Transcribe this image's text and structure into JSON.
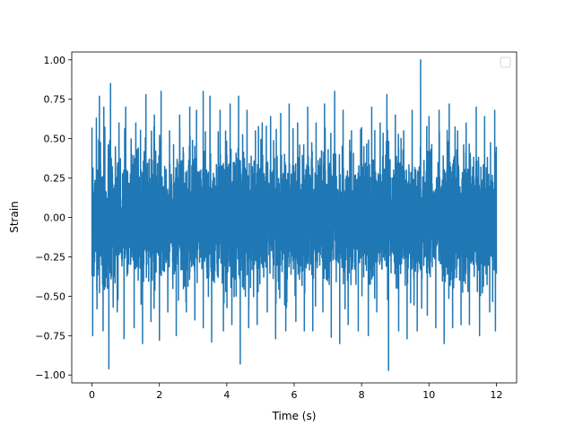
{
  "chart_data": {
    "type": "line",
    "title": "",
    "xlabel": "Time (s)",
    "ylabel": "Strain",
    "xlim": [
      -0.6,
      12.6
    ],
    "ylim": [
      -1.05,
      1.05
    ],
    "x_ticks": [
      0,
      2,
      4,
      6,
      8,
      10,
      12
    ],
    "x_tick_labels": [
      "0",
      "2",
      "4",
      "6",
      "8",
      "10",
      "12"
    ],
    "y_ticks": [
      -1.0,
      -0.75,
      -0.5,
      -0.25,
      0.0,
      0.25,
      0.5,
      0.75,
      1.0
    ],
    "y_tick_labels": [
      "−1.00",
      "−0.75",
      "−0.50",
      "−0.25",
      "0.00",
      "0.25",
      "0.50",
      "0.75",
      "1.00"
    ],
    "grid": false,
    "legend": {
      "placement": "top-right",
      "entries": []
    },
    "series": [
      {
        "color": "#1f77b4",
        "x_range": [
          0,
          12
        ],
        "core_amplitude": 0.3,
        "max": 1.0,
        "min": -0.97,
        "peaks": [
          [
            0.0,
            0.57
          ],
          [
            0.13,
            0.63
          ],
          [
            0.22,
            0.77
          ],
          [
            0.35,
            0.7
          ],
          [
            0.55,
            0.85
          ],
          [
            0.8,
            0.6
          ],
          [
            1.0,
            0.7
          ],
          [
            1.3,
            0.6
          ],
          [
            1.6,
            0.78
          ],
          [
            1.85,
            0.65
          ],
          [
            2.05,
            0.8
          ],
          [
            2.3,
            0.55
          ],
          [
            2.6,
            0.65
          ],
          [
            2.9,
            0.7
          ],
          [
            3.1,
            0.68
          ],
          [
            3.3,
            0.8
          ],
          [
            3.5,
            0.77
          ],
          [
            3.8,
            0.68
          ],
          [
            4.1,
            0.72
          ],
          [
            4.35,
            0.77
          ],
          [
            4.6,
            0.68
          ],
          [
            4.85,
            0.55
          ],
          [
            5.05,
            0.6
          ],
          [
            5.3,
            0.64
          ],
          [
            5.6,
            0.66
          ],
          [
            5.85,
            0.72
          ],
          [
            6.1,
            0.6
          ],
          [
            6.4,
            0.7
          ],
          [
            6.65,
            0.6
          ],
          [
            6.9,
            0.72
          ],
          [
            7.2,
            0.8
          ],
          [
            7.45,
            0.68
          ],
          [
            7.7,
            0.55
          ],
          [
            8.0,
            0.57
          ],
          [
            8.3,
            0.7
          ],
          [
            8.55,
            0.6
          ],
          [
            8.75,
            0.78
          ],
          [
            9.0,
            0.65
          ],
          [
            9.25,
            0.55
          ],
          [
            9.5,
            0.68
          ],
          [
            9.75,
            1.0
          ],
          [
            10.0,
            0.64
          ],
          [
            10.3,
            0.68
          ],
          [
            10.6,
            0.72
          ],
          [
            10.85,
            0.55
          ],
          [
            11.1,
            0.6
          ],
          [
            11.4,
            0.7
          ],
          [
            11.65,
            0.64
          ],
          [
            11.95,
            0.68
          ]
        ],
        "troughs": [
          [
            0.02,
            -0.75
          ],
          [
            0.15,
            -0.58
          ],
          [
            0.33,
            -0.72
          ],
          [
            0.5,
            -0.96
          ],
          [
            0.75,
            -0.6
          ],
          [
            0.95,
            -0.77
          ],
          [
            1.25,
            -0.7
          ],
          [
            1.5,
            -0.8
          ],
          [
            1.75,
            -0.66
          ],
          [
            2.0,
            -0.78
          ],
          [
            2.25,
            -0.6
          ],
          [
            2.5,
            -0.75
          ],
          [
            2.8,
            -0.6
          ],
          [
            3.05,
            -0.65
          ],
          [
            3.3,
            -0.7
          ],
          [
            3.55,
            -0.79
          ],
          [
            3.9,
            -0.72
          ],
          [
            4.15,
            -0.68
          ],
          [
            4.4,
            -0.93
          ],
          [
            4.65,
            -0.7
          ],
          [
            4.9,
            -0.68
          ],
          [
            5.2,
            -0.6
          ],
          [
            5.45,
            -0.77
          ],
          [
            5.75,
            -0.72
          ],
          [
            6.05,
            -0.66
          ],
          [
            6.3,
            -0.72
          ],
          [
            6.55,
            -0.72
          ],
          [
            6.85,
            -0.6
          ],
          [
            7.1,
            -0.76
          ],
          [
            7.35,
            -0.8
          ],
          [
            7.6,
            -0.68
          ],
          [
            7.9,
            -0.72
          ],
          [
            8.2,
            -0.75
          ],
          [
            8.45,
            -0.6
          ],
          [
            8.8,
            -0.97
          ],
          [
            9.1,
            -0.72
          ],
          [
            9.35,
            -0.77
          ],
          [
            9.65,
            -0.72
          ],
          [
            9.95,
            -0.62
          ],
          [
            10.2,
            -0.7
          ],
          [
            10.45,
            -0.8
          ],
          [
            10.7,
            -0.7
          ],
          [
            10.95,
            -0.68
          ],
          [
            11.2,
            -0.68
          ],
          [
            11.5,
            -0.75
          ],
          [
            11.8,
            -0.6
          ],
          [
            11.97,
            -0.72
          ]
        ]
      }
    ]
  }
}
